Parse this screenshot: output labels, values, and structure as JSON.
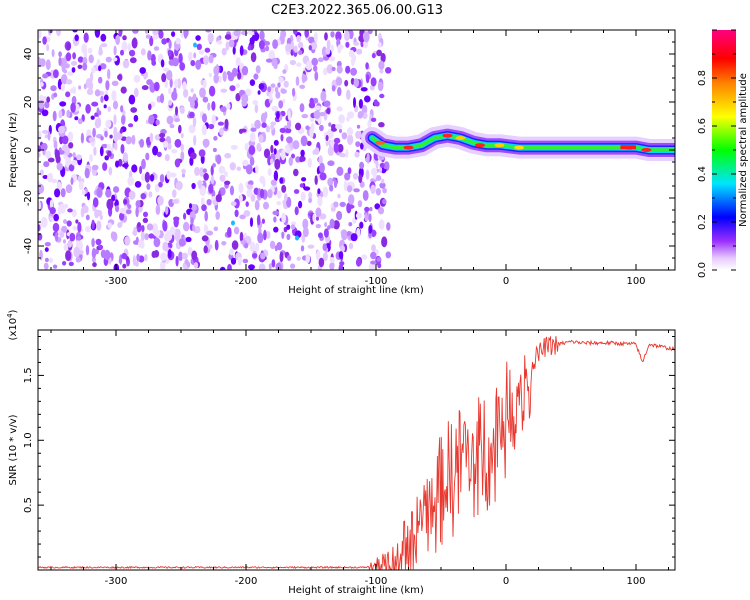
{
  "title": "C2E3.2022.365.06.00.G13",
  "chart_data": [
    {
      "type": "heatmap",
      "xlabel": "Height of straight line (km)",
      "ylabel": "Frequency (Hz)",
      "xlim": [
        -360,
        130
      ],
      "ylim": [
        -50,
        50
      ],
      "x_ticks": [
        "-300",
        "-200",
        "-100",
        "0",
        "100"
      ],
      "y_ticks": [
        "-40",
        "-20",
        "0",
        "20",
        "40"
      ],
      "colorbar": {
        "label": "Normalized spectral amplitude",
        "range": [
          0,
          1
        ],
        "ticks": [
          "0.0",
          "0.2",
          "0.4",
          "0.6",
          "0.8"
        ]
      },
      "noise_region_x": [
        -360,
        -95
      ],
      "signal_track": {
        "x": [
          -103,
          -95,
          -85,
          -75,
          -65,
          -55,
          -45,
          -35,
          -25,
          -15,
          -5,
          10,
          30,
          60,
          90,
          100,
          110,
          130
        ],
        "y": [
          5,
          2,
          1,
          1,
          2,
          5,
          6,
          5,
          3,
          2,
          2,
          1,
          1,
          1,
          1,
          1,
          0,
          0
        ]
      }
    },
    {
      "type": "line",
      "xlabel": "Height of straight line (km)",
      "ylabel": "SNR (10 * v/v)",
      "y_multiplier": "(x10",
      "y_multiplier_exp": "4",
      "xlim": [
        -360,
        130
      ],
      "ylim": [
        0,
        1.85
      ],
      "x_ticks": [
        "-300",
        "-200",
        "-100",
        "0",
        "100"
      ],
      "y_ticks": [
        "0.5",
        "1.0",
        "1.5"
      ],
      "series": [
        {
          "color": "#e8382f",
          "x": [
            -360,
            -300,
            -200,
            -110,
            -100,
            -90,
            -75,
            -60,
            -50,
            -40,
            -30,
            -20,
            -10,
            0,
            10,
            20,
            30,
            40,
            50,
            60,
            80,
            100,
            105,
            110,
            120,
            130
          ],
          "y": [
            0.02,
            0.02,
            0.02,
            0.02,
            0.03,
            0.05,
            0.25,
            0.55,
            0.7,
            0.85,
            0.95,
            1.0,
            1.1,
            1.3,
            1.45,
            1.6,
            1.72,
            1.74,
            1.76,
            1.75,
            1.75,
            1.74,
            1.6,
            1.74,
            1.72,
            1.7
          ]
        }
      ]
    }
  ]
}
